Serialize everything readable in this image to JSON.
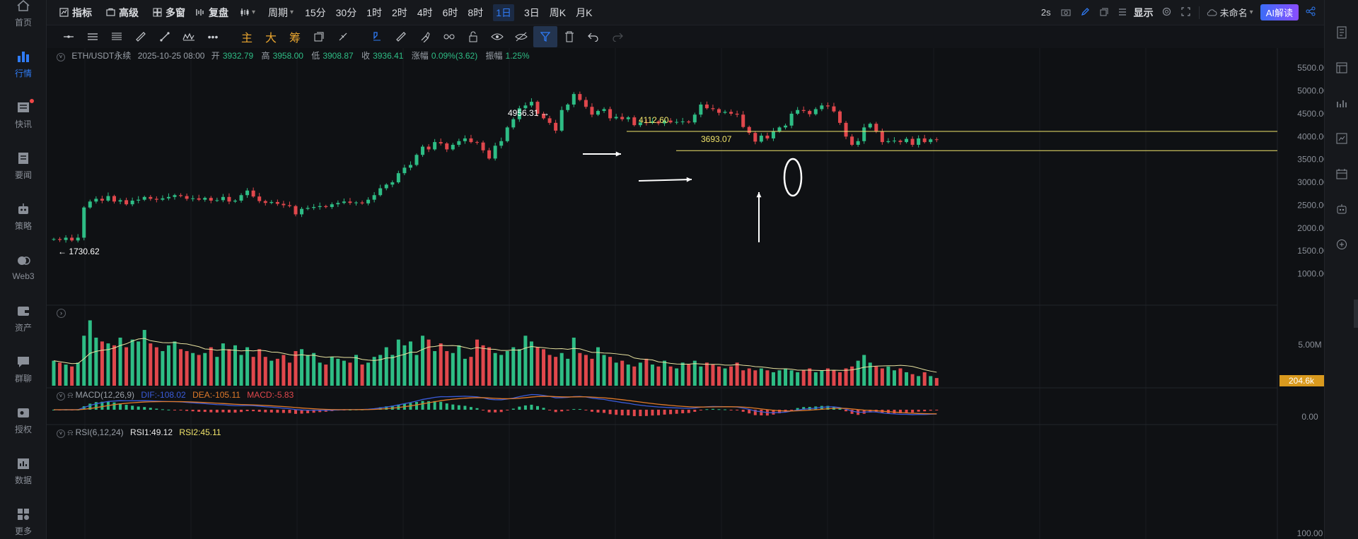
{
  "colors": {
    "up": "#2ebd85",
    "down": "#e0474c",
    "accent": "#2f7bf5",
    "hline": "#f2e56b",
    "ma": "#e8e3a0",
    "dif": "#3a5bd9",
    "dea": "#e07a2a"
  },
  "sidebar": {
    "items": [
      {
        "label": "首页",
        "icon": "home-icon"
      },
      {
        "label": "行情",
        "icon": "bar-chart-icon",
        "active": true
      },
      {
        "label": "快讯",
        "icon": "news-icon",
        "badge": true
      },
      {
        "label": "要闻",
        "icon": "document-icon"
      },
      {
        "label": "策略",
        "icon": "robot-icon"
      },
      {
        "label": "Web3",
        "icon": "web3-icon"
      },
      {
        "label": "资产",
        "icon": "wallet-icon"
      },
      {
        "label": "群聊",
        "icon": "chat-icon"
      },
      {
        "label": "授权",
        "icon": "key-icon"
      },
      {
        "label": "数据",
        "icon": "data-icon"
      },
      {
        "label": "更多",
        "icon": "grid-icon"
      }
    ]
  },
  "topbar": {
    "indicators": "指标",
    "advanced": "高级",
    "multi_window": "多窗",
    "replay": "复盘",
    "period": "周期",
    "intervals": [
      "15分",
      "30分",
      "1时",
      "2时",
      "4时",
      "6时",
      "8时",
      "1日",
      "3日",
      "周K",
      "月K"
    ],
    "active_interval": "1日",
    "refresh": "2s",
    "display": "显示",
    "layout_name": "未命名",
    "ai_button": "AI解读"
  },
  "drawbar": {
    "chinese_tools": [
      "主",
      "大",
      "筹"
    ]
  },
  "ohlc": {
    "symbol": "ETH/USDT永续",
    "date": "2025-10-25 08:00",
    "open_label": "开",
    "open": "3932.79",
    "high_label": "高",
    "high": "3958.00",
    "low_label": "低",
    "low": "3908.87",
    "close_label": "收",
    "close": "3936.41",
    "change_label": "涨幅",
    "change": "0.09%(3.62)",
    "amp_label": "振幅",
    "amp": "1.25%"
  },
  "price_axis": [
    "5500.00",
    "5000.00",
    "4500.00",
    "4000.00",
    "3500.00",
    "3000.00",
    "2500.00",
    "2000.00",
    "1500.00",
    "1000.00"
  ],
  "annotations": {
    "high_label": "4956.31",
    "low_label": "1730.62",
    "line1": "4112.60",
    "line2": "3693.07"
  },
  "volume": {
    "axis_label": "5.00M",
    "current": "204.6k"
  },
  "macd": {
    "name": "MACD(12,26,9)",
    "dif": "DIF:-108.02",
    "dea": "DEA:-105.11",
    "macd": "MACD:-5.83",
    "axis": "0.00"
  },
  "rsi": {
    "name": "RSI(6,12,24)",
    "rsi1": "RSI1:49.12",
    "rsi2": "RSI2:45.11",
    "axis": "100.00"
  },
  "chart_data": {
    "type": "candlestick",
    "y_range": [
      500,
      5750
    ],
    "hlines": [
      4112.6,
      3693.07
    ],
    "closes": [
      1760,
      1740,
      1790,
      1730,
      1790,
      2450,
      2580,
      2640,
      2600,
      2700,
      2580,
      2610,
      2520,
      2600,
      2620,
      2680,
      2640,
      2620,
      2650,
      2680,
      2720,
      2700,
      2640,
      2650,
      2620,
      2660,
      2600,
      2610,
      2680,
      2580,
      2600,
      2720,
      2820,
      2690,
      2590,
      2550,
      2570,
      2530,
      2500,
      2480,
      2300,
      2420,
      2440,
      2460,
      2480,
      2460,
      2520,
      2550,
      2580,
      2550,
      2560,
      2540,
      2620,
      2720,
      2870,
      2950,
      3000,
      3200,
      3320,
      3380,
      3600,
      3780,
      3720,
      3880,
      3850,
      3720,
      3820,
      3900,
      3960,
      3880,
      3870,
      3700,
      3520,
      3800,
      3900,
      4200,
      4380,
      4620,
      4680,
      4760,
      4500,
      4400,
      4300,
      4130,
      4580,
      4700,
      4930,
      4800,
      4650,
      4480,
      4560,
      4600,
      4400,
      4430,
      4380,
      4420,
      4250,
      4310,
      4300,
      4330,
      4290,
      4350,
      4310,
      4320,
      4330,
      4310,
      4480,
      4700,
      4620,
      4600,
      4520,
      4540,
      4500,
      4480,
      4210,
      4080,
      3890,
      4020,
      3960,
      4110,
      4200,
      4240,
      4500,
      4580,
      4560,
      4490,
      4600,
      4680,
      4660,
      4550,
      4300,
      4000,
      3820,
      3900,
      4200,
      4280,
      4120,
      3880,
      3900,
      3910,
      3880,
      3950,
      3820,
      3960,
      3880,
      3940,
      3936
    ],
    "volumes": [
      1.3,
      1.2,
      1.1,
      1.0,
      1.2,
      2.6,
      3.4,
      2.5,
      2.3,
      2.2,
      2.1,
      2.5,
      2.0,
      2.4,
      2.3,
      2.9,
      2.2,
      2.0,
      1.8,
      2.1,
      2.3,
      1.9,
      1.8,
      1.7,
      1.6,
      1.7,
      2.0,
      1.5,
      2.2,
      1.9,
      2.1,
      1.6,
      2.0,
      1.5,
      1.9,
      1.5,
      1.3,
      1.4,
      1.6,
      1.2,
      1.8,
      1.9,
      1.6,
      1.7,
      1.2,
      1.1,
      1.5,
      1.4,
      1.3,
      1.2,
      1.6,
      1.1,
      1.2,
      1.5,
      1.6,
      2.0,
      1.6,
      2.4,
      2.1,
      2.3,
      1.6,
      2.6,
      2.4,
      1.8,
      2.2,
      1.8,
      1.7,
      2.1,
      1.4,
      1.5,
      2.4,
      2.1,
      2.0,
      1.7,
      1.6,
      1.8,
      2.0,
      1.9,
      2.6,
      2.3,
      2.0,
      1.9,
      1.6,
      1.5,
      1.7,
      1.4,
      2.5,
      1.7,
      1.6,
      1.4,
      2.0,
      1.6,
      1.5,
      1.2,
      1.3,
      1.1,
      1.0,
      1.2,
      1.4,
      1.1,
      1.0,
      1.3,
      1.0,
      0.9,
      1.2,
      1.1,
      1.3,
      1.0,
      1.2,
      1.1,
      1.0,
      0.9,
      1.0,
      1.2,
      0.8,
      0.9,
      0.8,
      0.9,
      0.8,
      0.7,
      0.8,
      0.9,
      0.8,
      0.7,
      0.8,
      0.9,
      0.7,
      0.8,
      0.9,
      0.8,
      0.7,
      0.9,
      1.0,
      1.3,
      1.6,
      1.2,
      1.0,
      0.9,
      1.0,
      0.8,
      0.9,
      0.7,
      0.6,
      0.5,
      0.7,
      0.5,
      0.4
    ]
  }
}
